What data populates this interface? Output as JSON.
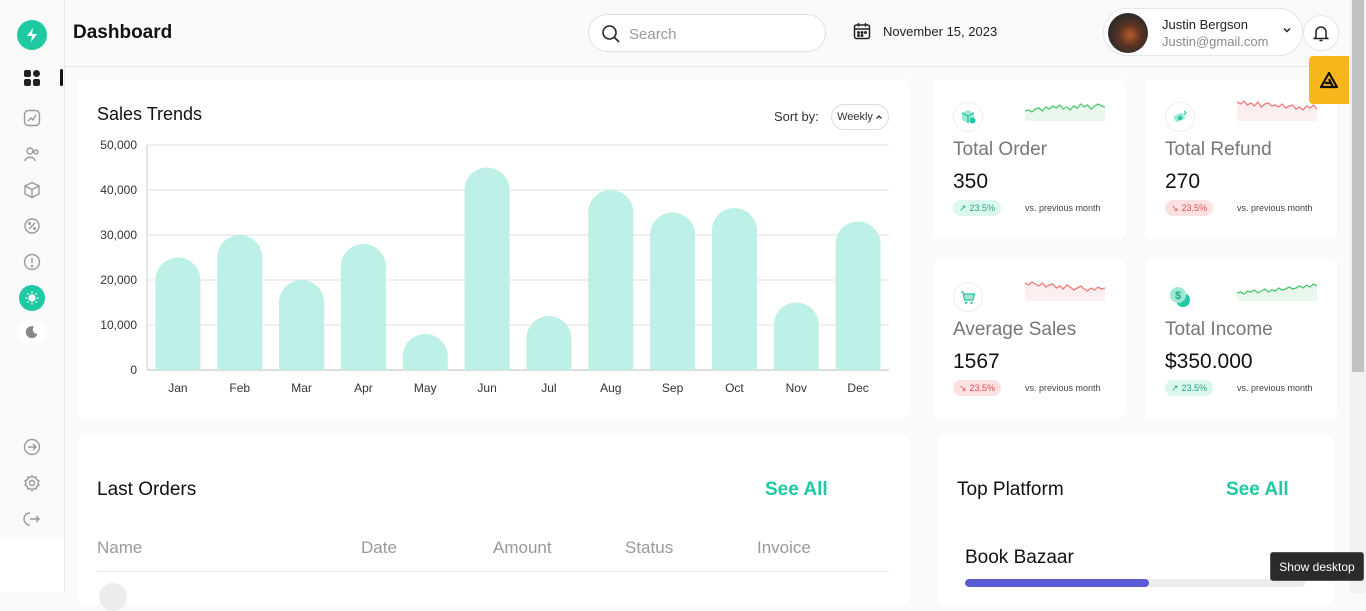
{
  "header": {
    "title": "Dashboard",
    "search_placeholder": "Search",
    "date": "November 15, 2023",
    "user_name": "Justin Bergson",
    "user_email": "Justin@gmail.com"
  },
  "sales": {
    "title": "Sales Trends",
    "sort_label": "Sort by:",
    "sort_value": "Weekly"
  },
  "chart_data": {
    "type": "bar",
    "title": "Sales Trends",
    "categories": [
      "Jan",
      "Feb",
      "Mar",
      "Apr",
      "May",
      "Jun",
      "Jul",
      "Aug",
      "Sep",
      "Oct",
      "Nov",
      "Dec"
    ],
    "values": [
      25000,
      30000,
      20000,
      28000,
      8000,
      45000,
      12000,
      40000,
      35000,
      36000,
      15000,
      33000
    ],
    "ylim": [
      0,
      50000
    ],
    "yticks": [
      "0",
      "10,000",
      "20,000",
      "30,000",
      "40,000",
      "50,000"
    ],
    "grid": true,
    "bar_color": "#bdf0e6"
  },
  "stats": [
    {
      "label": "Total Order",
      "value": "350",
      "change": "23.5%",
      "trend": "up",
      "vs": "vs. previous month",
      "spark_color": "#4cc96f"
    },
    {
      "label": "Total Refund",
      "value": "270",
      "change": "23.5%",
      "trend": "down",
      "vs": "vs. previous month",
      "spark_color": "#f07a7a"
    },
    {
      "label": "Average Sales",
      "value": "1567",
      "change": "23.5%",
      "trend": "down",
      "vs": "vs. previous month",
      "spark_color": "#f07a7a"
    },
    {
      "label": "Total Income",
      "value": "$350.000",
      "change": "23.5%",
      "trend": "up",
      "vs": "vs. previous month",
      "spark_color": "#4cc96f"
    }
  ],
  "orders": {
    "title": "Last Orders",
    "see_all": "See All",
    "columns": [
      "Name",
      "Date",
      "Amount",
      "Status",
      "Invoice"
    ]
  },
  "platform": {
    "title": "Top Platform",
    "see_all": "See All",
    "items": [
      {
        "name": "Book Bazaar",
        "progress": 0.54,
        "color": "#5b5bd6"
      }
    ]
  },
  "tooltip": "Show desktop",
  "colors": {
    "accent": "#1fc9a2",
    "extension": "#f7b71a"
  }
}
